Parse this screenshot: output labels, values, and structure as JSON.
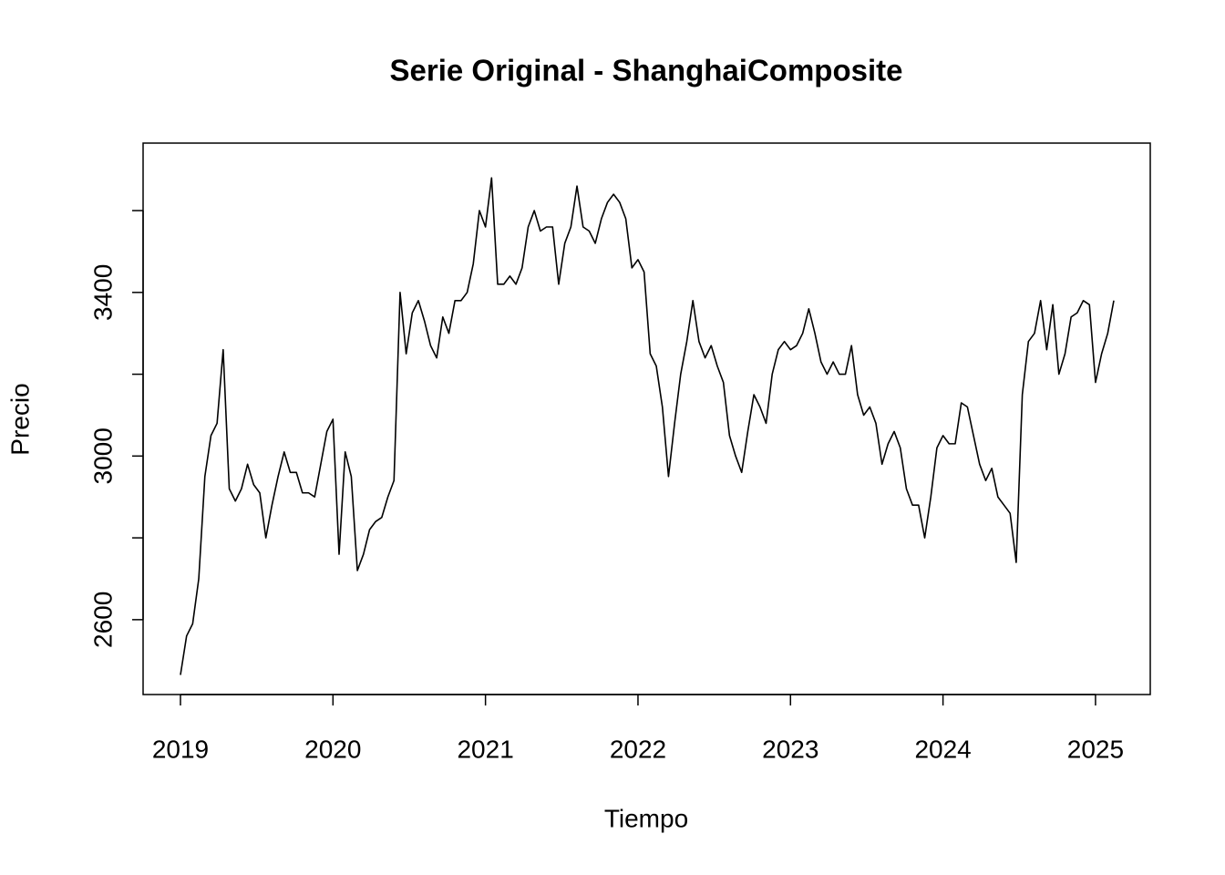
{
  "chart_data": {
    "type": "line",
    "title": "Serie Original - ShanghaiComposite",
    "x_label": "Tiempo",
    "y_label": "Precio",
    "x": [
      2019.0,
      2019.04,
      2019.08,
      2019.12,
      2019.16,
      2019.2,
      2019.24,
      2019.28,
      2019.32,
      2019.36,
      2019.4,
      2019.44,
      2019.48,
      2019.52,
      2019.56,
      2019.6,
      2019.64,
      2019.68,
      2019.72,
      2019.76,
      2019.8,
      2019.84,
      2019.88,
      2019.92,
      2019.96,
      2020.0,
      2020.04,
      2020.08,
      2020.12,
      2020.16,
      2020.2,
      2020.24,
      2020.28,
      2020.32,
      2020.36,
      2020.4,
      2020.44,
      2020.48,
      2020.52,
      2020.56,
      2020.6,
      2020.64,
      2020.68,
      2020.72,
      2020.76,
      2020.8,
      2020.84,
      2020.88,
      2020.92,
      2020.96,
      2021.0,
      2021.04,
      2021.08,
      2021.12,
      2021.16,
      2021.2,
      2021.24,
      2021.28,
      2021.32,
      2021.36,
      2021.4,
      2021.44,
      2021.48,
      2021.52,
      2021.56,
      2021.6,
      2021.64,
      2021.68,
      2021.72,
      2021.76,
      2021.8,
      2021.84,
      2021.88,
      2021.92,
      2021.96,
      2022.0,
      2022.04,
      2022.08,
      2022.12,
      2022.16,
      2022.2,
      2022.24,
      2022.28,
      2022.32,
      2022.36,
      2022.4,
      2022.44,
      2022.48,
      2022.52,
      2022.56,
      2022.6,
      2022.64,
      2022.68,
      2022.72,
      2022.76,
      2022.8,
      2022.84,
      2022.88,
      2022.92,
      2022.96,
      2023.0,
      2023.04,
      2023.08,
      2023.12,
      2023.16,
      2023.2,
      2023.24,
      2023.28,
      2023.32,
      2023.36,
      2023.4,
      2023.44,
      2023.48,
      2023.52,
      2023.56,
      2023.6,
      2023.64,
      2023.68,
      2023.72,
      2023.76,
      2023.8,
      2023.84,
      2023.88,
      2023.92,
      2023.96,
      2024.0,
      2024.04,
      2024.08,
      2024.12,
      2024.16,
      2024.2,
      2024.24,
      2024.28,
      2024.32,
      2024.36,
      2024.4,
      2024.44,
      2024.48,
      2024.52,
      2024.56,
      2024.6,
      2024.64,
      2024.68,
      2024.72,
      2024.76,
      2024.8,
      2024.84,
      2024.88,
      2024.92,
      2024.96,
      2025.0,
      2025.04,
      2025.08,
      2025.12
    ],
    "series": [
      {
        "name": "ShanghaiComposite",
        "color": "#000000",
        "values": [
          2465,
          2560,
          2590,
          2700,
          2950,
          3050,
          3080,
          3260,
          2920,
          2890,
          2920,
          2980,
          2930,
          2910,
          2800,
          2880,
          2950,
          3010,
          2960,
          2960,
          2910,
          2910,
          2900,
          2980,
          3060,
          3090,
          2760,
          3010,
          2950,
          2720,
          2760,
          2820,
          2840,
          2850,
          2900,
          2940,
          3400,
          3250,
          3350,
          3380,
          3330,
          3270,
          3240,
          3340,
          3300,
          3380,
          3380,
          3400,
          3470,
          3600,
          3560,
          3680,
          3420,
          3420,
          3440,
          3420,
          3460,
          3560,
          3600,
          3550,
          3560,
          3560,
          3420,
          3520,
          3560,
          3660,
          3560,
          3550,
          3520,
          3580,
          3620,
          3640,
          3620,
          3580,
          3460,
          3480,
          3450,
          3250,
          3220,
          3120,
          2950,
          3080,
          3200,
          3280,
          3380,
          3280,
          3240,
          3270,
          3220,
          3180,
          3050,
          3000,
          2960,
          3060,
          3150,
          3120,
          3080,
          3200,
          3260,
          3280,
          3260,
          3270,
          3300,
          3360,
          3300,
          3230,
          3200,
          3230,
          3200,
          3200,
          3270,
          3150,
          3100,
          3120,
          3080,
          2980,
          3030,
          3060,
          3020,
          2920,
          2880,
          2880,
          2800,
          2900,
          3020,
          3050,
          3030,
          3030,
          3130,
          3120,
          3050,
          2980,
          2940,
          2970,
          2900,
          2880,
          2860,
          2740,
          3150,
          3280,
          3300,
          3380,
          3260,
          3370,
          3200,
          3250,
          3340,
          3350,
          3380,
          3370,
          3180,
          3250,
          3300,
          3380
        ]
      }
    ],
    "xlim": [
      2018.755,
      2025.359
    ],
    "xticks": [
      2019,
      2020,
      2021,
      2022,
      2023,
      2024,
      2025
    ],
    "ylim": [
      2417,
      3765
    ],
    "yticks": [
      2600,
      {
        "value": 2800
      },
      3000,
      {
        "value": 3200
      },
      3400,
      {
        "value": 3600
      }
    ]
  }
}
